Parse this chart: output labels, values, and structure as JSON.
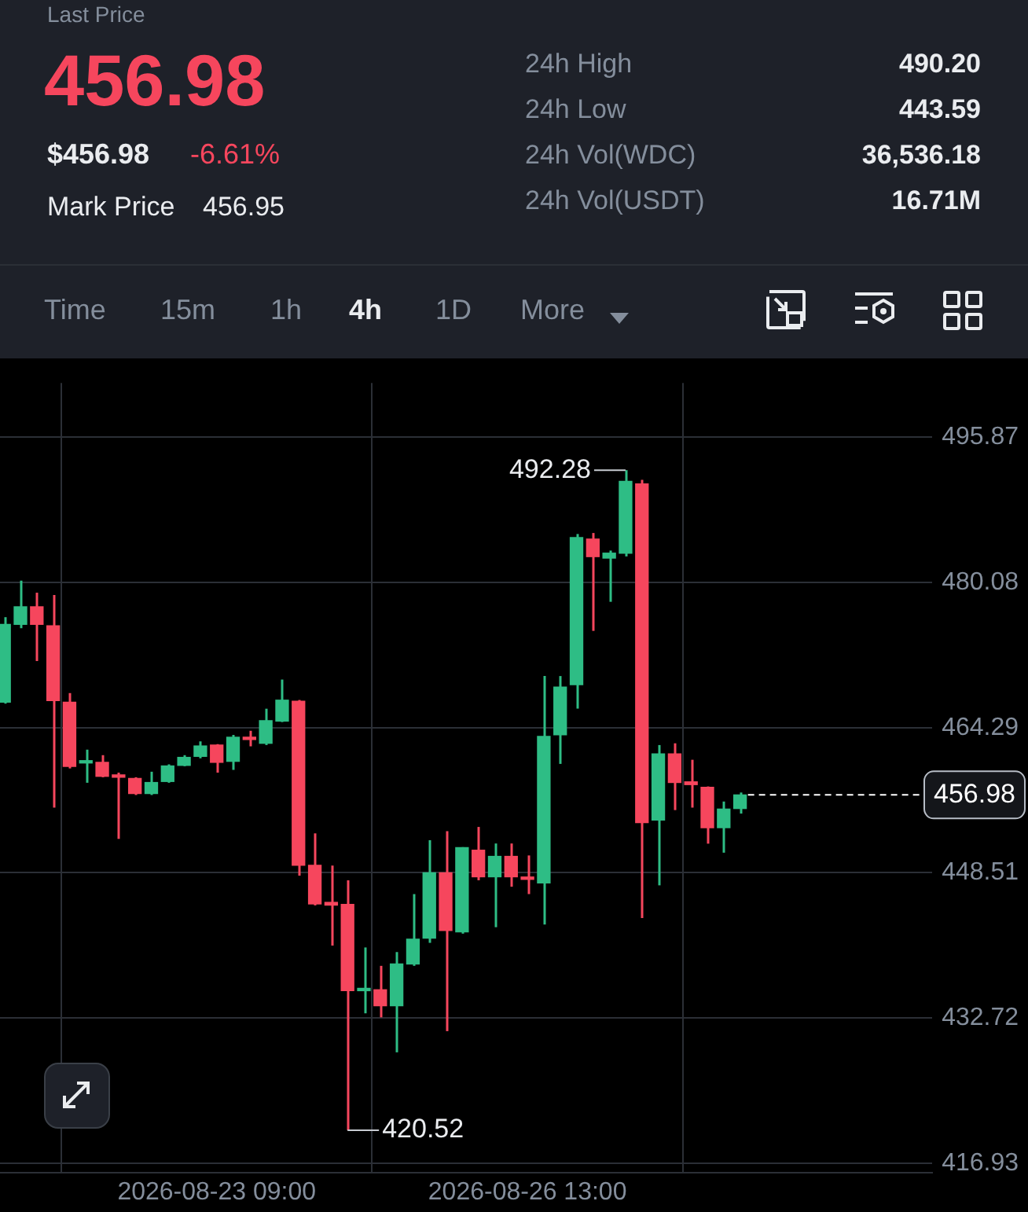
{
  "chart_data": {
    "type": "candlestick",
    "x": [
      "2026-08-21T05:00",
      "2026-08-21T09:00",
      "2026-08-21T13:00",
      "2026-08-21T17:00",
      "2026-08-21T21:00",
      "2026-08-22T01:00",
      "2026-08-22T05:00",
      "2026-08-22T09:00",
      "2026-08-22T13:00",
      "2026-08-22T17:00",
      "2026-08-22T21:00",
      "2026-08-23T01:00",
      "2026-08-23T05:00",
      "2026-08-23T09:00",
      "2026-08-23T13:00",
      "2026-08-23T17:00",
      "2026-08-23T21:00",
      "2026-08-24T01:00",
      "2026-08-24T05:00",
      "2026-08-24T09:00",
      "2026-08-24T13:00",
      "2026-08-24T17:00",
      "2026-08-24T21:00",
      "2026-08-25T01:00",
      "2026-08-25T05:00",
      "2026-08-25T09:00",
      "2026-08-25T13:00",
      "2026-08-25T17:00",
      "2026-08-25T21:00",
      "2026-08-26T01:00",
      "2026-08-26T05:00",
      "2026-08-26T09:00",
      "2026-08-26T13:00",
      "2026-08-26T17:00",
      "2026-08-26T21:00",
      "2026-08-27T01:00",
      "2026-08-27T05:00",
      "2026-08-27T09:00",
      "2026-08-27T13:00",
      "2026-08-27T17:00",
      "2026-08-27T21:00",
      "2026-08-28T01:00",
      "2026-08-28T05:00",
      "2026-08-28T09:00",
      "2026-08-28T13:00",
      "2026-08-28T17:00"
    ],
    "ohlc": [
      [
        467.06,
        476.3,
        466.9,
        475.52
      ],
      [
        475.52,
        480.27,
        475.1,
        477.43
      ],
      [
        477.43,
        478.96,
        471.53,
        475.52
      ],
      [
        475.36,
        478.7,
        455.6,
        467.23
      ],
      [
        467.06,
        468.05,
        459.86,
        460.08
      ],
      [
        460.45,
        461.9,
        458.3,
        460.7
      ],
      [
        460.52,
        461.3,
        458.9,
        459.0
      ],
      [
        459.1,
        459.4,
        452.2,
        458.9
      ],
      [
        458.77,
        458.9,
        456.97,
        457.13
      ],
      [
        457.13,
        459.5,
        456.97,
        458.33
      ],
      [
        458.44,
        460.3,
        458.3,
        460.13
      ],
      [
        460.19,
        461.3,
        460.1,
        461.06
      ],
      [
        461.17,
        462.8,
        460.96,
        462.3
      ],
      [
        462.4,
        462.5,
        459.4,
        460.52
      ],
      [
        460.63,
        463.5,
        459.7,
        463.25
      ],
      [
        463.2,
        463.95,
        462.26,
        463.0
      ],
      [
        462.59,
        466.35,
        462.4,
        465.05
      ],
      [
        465.0,
        469.52,
        464.9,
        467.28
      ],
      [
        467.17,
        467.3,
        448.2,
        449.33
      ],
      [
        449.33,
        452.8,
        444.97,
        445.13
      ],
      [
        445.3,
        449.3,
        440.6,
        445.0
      ],
      [
        445.08,
        447.7,
        420.52,
        435.7
      ],
      [
        435.7,
        440.4,
        433.24,
        435.8
      ],
      [
        435.8,
        438.4,
        432.8,
        434.06
      ],
      [
        434.06,
        439.9,
        429.0,
        438.6
      ],
      [
        438.6,
        446.2,
        438.4,
        441.3
      ],
      [
        441.42,
        452.06,
        440.9,
        448.51
      ],
      [
        448.51,
        453.04,
        431.3,
        442.24
      ],
      [
        442.1,
        451.3,
        441.9,
        451.24
      ],
      [
        450.97,
        453.5,
        447.7,
        448.08
      ],
      [
        448.08,
        451.7,
        442.6,
        450.3
      ],
      [
        450.3,
        451.7,
        447.0,
        448.08
      ],
      [
        448.0,
        450.4,
        446.2,
        447.8
      ],
      [
        447.42,
        469.9,
        442.9,
        463.35
      ],
      [
        463.52,
        469.9,
        460.35,
        468.7
      ],
      [
        468.97,
        485.34,
        466.36,
        484.96
      ],
      [
        484.79,
        485.45,
        474.81,
        482.88
      ],
      [
        482.72,
        483.54,
        477.97,
        483.26
      ],
      [
        483.26,
        492.28,
        482.9,
        491.06
      ],
      [
        490.79,
        491.23,
        443.6,
        453.97
      ],
      [
        454.24,
        462.4,
        447.15,
        461.44
      ],
      [
        461.44,
        462.59,
        455.33,
        458.33
      ],
      [
        458.4,
        460.8,
        455.6,
        458.1
      ],
      [
        457.8,
        457.9,
        451.68,
        453.42
      ],
      [
        453.42,
        456.26,
        450.7,
        455.44
      ],
      [
        455.5,
        457.24,
        454.95,
        456.98
      ]
    ],
    "colors": [
      "#2ebd85",
      "#2ebd85",
      "#f6465d",
      "#f6465d",
      "#f6465d",
      "#2ebd85",
      "#f6465d",
      "#f6465d",
      "#f6465d",
      "#2ebd85",
      "#2ebd85",
      "#2ebd85",
      "#2ebd85",
      "#f6465d",
      "#2ebd85",
      "#f6465d",
      "#2ebd85",
      "#2ebd85",
      "#f6465d",
      "#f6465d",
      "#f6465d",
      "#f6465d",
      "#2ebd85",
      "#f6465d",
      "#2ebd85",
      "#2ebd85",
      "#2ebd85",
      "#f6465d",
      "#2ebd85",
      "#f6465d",
      "#2ebd85",
      "#f6465d",
      "#f6465d",
      "#2ebd85",
      "#2ebd85",
      "#2ebd85",
      "#f6465d",
      "#2ebd85",
      "#2ebd85",
      "#f6465d",
      "#2ebd85",
      "#f6465d",
      "#f6465d",
      "#f6465d",
      "#2ebd85",
      "#2ebd85"
    ],
    "xlim": [
      "2026-08-21T04:00",
      "2026-08-30T16:00"
    ],
    "xticks": [
      {
        "value": "2026-08-23T09:00",
        "label": "2026-08-23 09:00"
      },
      {
        "value": "2026-08-26T13:00",
        "label": "2026-08-26 13:00"
      }
    ],
    "ylim": [
      415.95,
      501.76
    ],
    "yticks": [
      416.93,
      432.72,
      448.51,
      464.29,
      480.08,
      495.87
    ],
    "grid": true,
    "legend": false,
    "ref_lines": [
      {
        "axis": "y",
        "value": 456.98,
        "label": "456.98",
        "color": "#ffffff",
        "line_style": "dashed"
      }
    ],
    "annotations": [
      "Last Price",
      "456.98",
      "$456.98",
      "-6.61%",
      "Mark Price",
      "456.95",
      "24h High",
      "490.20",
      "24h Low",
      "443.59",
      "24h Vol(WDC)",
      "36,536.18",
      "24h Vol(USDT)",
      "16.71M",
      "Time",
      "15m",
      "1h",
      "4h",
      "1D",
      "More",
      {
        "text": "492.28",
        "x": "2026-08-27T13:00",
        "y": 492.28
      },
      {
        "text": "420.52",
        "x": "2026-08-24T17:00",
        "y": 420.52
      }
    ]
  }
}
